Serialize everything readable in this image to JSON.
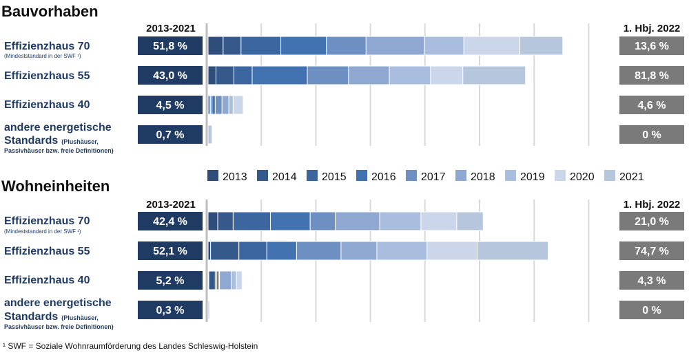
{
  "colors": {
    "years": [
      "#2e4d7b",
      "#36598c",
      "#3c66a0",
      "#4273b0",
      "#6d8fc1",
      "#8ea8d1",
      "#a9bedf",
      "#cbd6ea",
      "#b6c7dd"
    ],
    "label_text": "#1f3a63",
    "left_box": "#1f3a63",
    "right_box": "#7a7a7a"
  },
  "legend": [
    "2013",
    "2014",
    "2015",
    "2016",
    "2017",
    "2018",
    "2019",
    "2020",
    "2021"
  ],
  "footnote": "¹ SWF = Soziale Wohnraumförderung des Landes Schleswig-Holstein",
  "chart_data": [
    {
      "type": "bar",
      "title": "Bauvorhaben",
      "left_header": "2013-2021",
      "right_header": "1. Hbj. 2022",
      "rows": [
        {
          "label": "Effizienzhaus 70",
          "sublabel": "(Mindeststandard in der SWF ¹)",
          "total": "51,8 %",
          "current": "13,6 %",
          "segments": [
            4.2,
            5.0,
            11.1,
            12.7,
            11.1,
            16.3,
            11.0,
            15.6,
            12.0
          ]
        },
        {
          "label": "Effizienzhaus 55",
          "total": "43,0 %",
          "current": "81,8 %",
          "segments": [
            2.2,
            5.0,
            5.1,
            15.4,
            11.5,
            11.4,
            11.5,
            9.0,
            17.5
          ]
        },
        {
          "label": "Effizienzhaus 40",
          "total": "4,5 %",
          "current": "4,6 %",
          "segments": [
            0.3,
            0.4,
            0.4,
            0.9,
            1.9,
            1.9,
            1.2,
            2.8,
            0
          ]
        },
        {
          "label": "andere energetische",
          "label2": "Standards",
          "label2_note": "(Plushäuser,",
          "label3": "Passivhäuser bzw. freie Definitionen)",
          "total": "0,7 %",
          "current": "0 %",
          "segments": [
            0,
            0,
            0,
            0,
            0,
            0,
            0,
            0,
            1.1
          ]
        }
      ]
    },
    {
      "type": "bar",
      "title": "Wohneinheiten",
      "left_header": "2013-2021",
      "right_header": "1. Hbj. 2022",
      "rows": [
        {
          "label": "Effizienzhaus 70",
          "sublabel": "(Mindeststandard in der SWF ¹)",
          "total": "42,4 %",
          "current": "21,0 %",
          "segments": [
            2.7,
            4.3,
            10.4,
            11.1,
            7.0,
            12.4,
            11.5,
            10.0,
            7.4
          ]
        },
        {
          "label": "Effizienzhaus 55",
          "total": "52,1 %",
          "current": "74,7 %",
          "segments": [
            0.7,
            7.9,
            7.8,
            8.3,
            12.4,
            10.0,
            14.0,
            14.0,
            19.8
          ]
        },
        {
          "label": "Effizienzhaus 40",
          "total": "5,2 %",
          "current": "4,3 %",
          "segments": [
            0.2,
            1.8,
            0.4,
            0.4,
            0.4,
            3.3,
            1.4,
            1.6,
            0
          ]
        },
        {
          "label": "andere energetische",
          "label2": "Standards",
          "label2_note": "(Plushäuser,",
          "label3": "Passivhäuser bzw. freie Definitionen)",
          "total": "0,3 %",
          "current": "0 %",
          "segments": [
            0,
            0,
            0,
            0,
            0,
            0,
            0,
            0,
            0.4
          ]
        }
      ]
    }
  ]
}
